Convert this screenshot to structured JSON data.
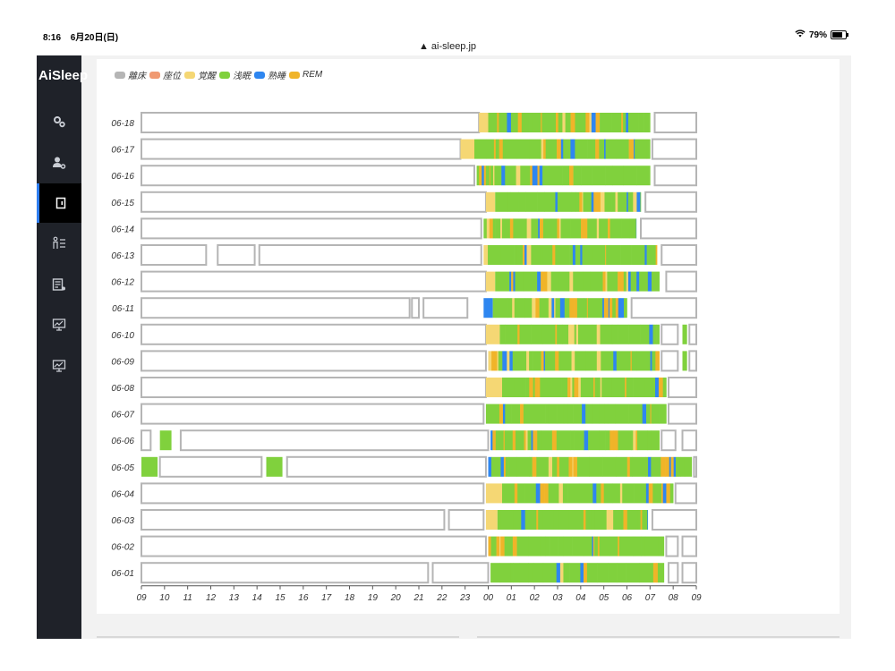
{
  "status_bar": {
    "time": "8:16",
    "date": "6月20日(日)",
    "url": "ai-sleep.jp",
    "battery": "79%"
  },
  "sidebar": {
    "brand": "AiSleep",
    "items": [
      {
        "icon": "gears-icon"
      },
      {
        "icon": "user-settings-icon"
      },
      {
        "icon": "door-icon",
        "active": true
      },
      {
        "icon": "people-list-icon"
      },
      {
        "icon": "report-settings-icon"
      },
      {
        "icon": "monitor-chart-icon"
      },
      {
        "icon": "monitor-chart-icon-2"
      }
    ]
  },
  "legend": [
    {
      "label": "離床",
      "color": "#b5b5b5"
    },
    {
      "label": "座位",
      "color": "#f09a72"
    },
    {
      "label": "覚醒",
      "color": "#f5d774"
    },
    {
      "label": "浅眠",
      "color": "#80d13d"
    },
    {
      "label": "熟睡",
      "color": "#2e86f0"
    },
    {
      "label": "REM",
      "color": "#f0b429"
    }
  ],
  "chart_data": {
    "type": "timeline",
    "title": "",
    "x_ticks": [
      "09",
      "10",
      "11",
      "12",
      "13",
      "14",
      "15",
      "16",
      "17",
      "18",
      "19",
      "20",
      "21",
      "22",
      "23",
      "00",
      "01",
      "02",
      "03",
      "04",
      "05",
      "06",
      "07",
      "08",
      "09"
    ],
    "rows": [
      {
        "date": "06-18",
        "segments": [
          [
            "out",
            0,
            14.6
          ],
          [
            "wake",
            14.6,
            15.0
          ],
          [
            "mix",
            15.0,
            22.0
          ],
          [
            "out",
            22.2,
            24.0
          ]
        ]
      },
      {
        "date": "06-17",
        "segments": [
          [
            "out",
            0,
            13.8
          ],
          [
            "wake",
            13.8,
            14.4
          ],
          [
            "mix",
            14.4,
            22.0
          ],
          [
            "out",
            22.1,
            24.0
          ]
        ]
      },
      {
        "date": "06-16",
        "segments": [
          [
            "out",
            0,
            14.4
          ],
          [
            "mix",
            14.5,
            22.0
          ],
          [
            "out",
            22.2,
            24.0
          ]
        ]
      },
      {
        "date": "06-15",
        "segments": [
          [
            "out",
            0,
            14.9
          ],
          [
            "wake",
            14.9,
            15.3
          ],
          [
            "mix",
            15.3,
            21.6
          ],
          [
            "out",
            21.8,
            24.0
          ]
        ]
      },
      {
        "date": "06-14",
        "segments": [
          [
            "out",
            0,
            14.7
          ],
          [
            "mix",
            14.8,
            21.4
          ],
          [
            "out",
            21.6,
            24.0
          ]
        ]
      },
      {
        "date": "06-13",
        "segments": [
          [
            "out",
            0,
            2.8
          ],
          [
            "out",
            3.3,
            4.9
          ],
          [
            "out",
            5.1,
            14.7
          ],
          [
            "mix",
            14.8,
            22.3
          ],
          [
            "out",
            22.5,
            24.0
          ]
        ]
      },
      {
        "date": "06-12",
        "segments": [
          [
            "out",
            0,
            14.9
          ],
          [
            "wake",
            14.9,
            15.3
          ],
          [
            "mix",
            15.3,
            22.4
          ],
          [
            "out",
            22.7,
            24.0
          ]
        ]
      },
      {
        "date": "06-11",
        "segments": [
          [
            "out",
            0,
            11.6
          ],
          [
            "out",
            11.7,
            12.0
          ],
          [
            "out",
            12.2,
            14.1
          ],
          [
            "deep",
            14.8,
            15.2
          ],
          [
            "mix",
            15.2,
            21.0
          ],
          [
            "out",
            21.2,
            24.0
          ]
        ]
      },
      {
        "date": "06-10",
        "segments": [
          [
            "out",
            0,
            14.9
          ],
          [
            "wake",
            14.9,
            15.5
          ],
          [
            "mix",
            15.5,
            22.4
          ],
          [
            "out",
            22.5,
            23.2
          ],
          [
            "light",
            23.4,
            23.6
          ],
          [
            "out",
            23.7,
            24.0
          ]
        ]
      },
      {
        "date": "06-09",
        "segments": [
          [
            "out",
            0,
            14.9
          ],
          [
            "mix",
            15.0,
            22.4
          ],
          [
            "out",
            22.5,
            23.2
          ],
          [
            "light",
            23.4,
            23.6
          ],
          [
            "out",
            23.7,
            24.0
          ]
        ]
      },
      {
        "date": "06-08",
        "segments": [
          [
            "out",
            0,
            14.9
          ],
          [
            "wake",
            14.9,
            15.6
          ],
          [
            "mix",
            15.6,
            22.7
          ],
          [
            "out",
            22.8,
            24.0
          ]
        ]
      },
      {
        "date": "06-07",
        "segments": [
          [
            "out",
            0,
            14.8
          ],
          [
            "mix",
            14.9,
            22.7
          ],
          [
            "out",
            22.8,
            24.0
          ]
        ]
      },
      {
        "date": "06-06",
        "segments": [
          [
            "out",
            0,
            0.4
          ],
          [
            "light",
            0.8,
            1.3
          ],
          [
            "out",
            1.7,
            15.0
          ],
          [
            "mix",
            15.1,
            22.4
          ],
          [
            "out",
            22.5,
            23.1
          ],
          [
            "out",
            23.4,
            24.0
          ]
        ]
      },
      {
        "date": "06-05",
        "segments": [
          [
            "light",
            0,
            0.7
          ],
          [
            "out",
            0.8,
            5.2
          ],
          [
            "light",
            5.4,
            6.1
          ],
          [
            "out",
            6.3,
            14.9
          ],
          [
            "mix",
            15.0,
            23.8
          ],
          [
            "out",
            23.9,
            24.0
          ]
        ]
      },
      {
        "date": "06-04",
        "segments": [
          [
            "out",
            0,
            14.8
          ],
          [
            "wake",
            14.9,
            15.6
          ],
          [
            "mix",
            15.6,
            23.0
          ],
          [
            "out",
            23.1,
            24.0
          ]
        ]
      },
      {
        "date": "06-03",
        "segments": [
          [
            "out",
            0,
            13.1
          ],
          [
            "out",
            13.3,
            14.8
          ],
          [
            "wake",
            14.9,
            15.4
          ],
          [
            "mix",
            15.4,
            21.9
          ],
          [
            "out",
            22.1,
            24.0
          ]
        ]
      },
      {
        "date": "06-02",
        "segments": [
          [
            "out",
            0,
            14.9
          ],
          [
            "mix",
            15.0,
            22.6
          ],
          [
            "out",
            22.7,
            23.2
          ],
          [
            "out",
            23.4,
            24.0
          ]
        ]
      },
      {
        "date": "06-01",
        "segments": [
          [
            "out",
            0,
            12.4
          ],
          [
            "out",
            12.6,
            15.0
          ],
          [
            "mix",
            15.1,
            22.6
          ],
          [
            "out",
            22.8,
            23.2
          ],
          [
            "out",
            23.4,
            24.0
          ]
        ]
      }
    ]
  }
}
